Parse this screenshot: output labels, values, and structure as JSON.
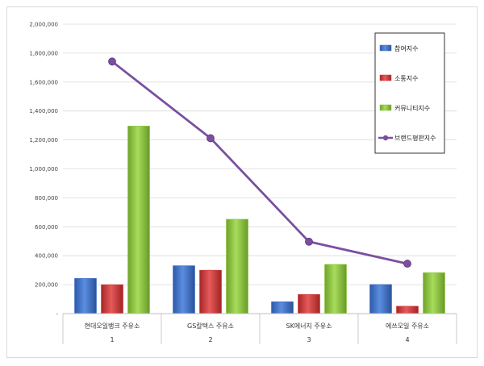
{
  "chart_data": {
    "type": "bar",
    "categories": [
      "현대오일뱅크 주유소",
      "GS칼텍스 주유소",
      "SK에너지 주유소",
      "에쓰오일 주유소"
    ],
    "category_numbers": [
      "1",
      "2",
      "3",
      "4"
    ],
    "series": [
      {
        "name": "참여지수",
        "type": "bar",
        "color": "#3f72c8",
        "values": [
          243000,
          331000,
          82000,
          201000
        ]
      },
      {
        "name": "소통지수",
        "type": "bar",
        "color": "#d0393a",
        "values": [
          200000,
          300000,
          132000,
          51000
        ]
      },
      {
        "name": "커뮤니티지수",
        "type": "bar",
        "color": "#8cc63e",
        "values": [
          1296000,
          652000,
          340000,
          283000
        ]
      },
      {
        "name": "브랜드평판지수",
        "type": "line",
        "color": "#7a4fa0",
        "values": [
          1742000,
          1212000,
          497000,
          345000
        ]
      }
    ],
    "ylim": [
      0,
      2000000
    ],
    "yticks": [
      0,
      200000,
      400000,
      600000,
      800000,
      1000000,
      1200000,
      1400000,
      1600000,
      1800000,
      2000000
    ],
    "ytick_labels": [
      "-",
      "200,000",
      "400,000",
      "600,000",
      "800,000",
      "1,000,000",
      "1,200,000",
      "1,400,000",
      "1,600,000",
      "1,800,000",
      "2,000,000"
    ],
    "grid": true,
    "legend_position": "top-right"
  }
}
